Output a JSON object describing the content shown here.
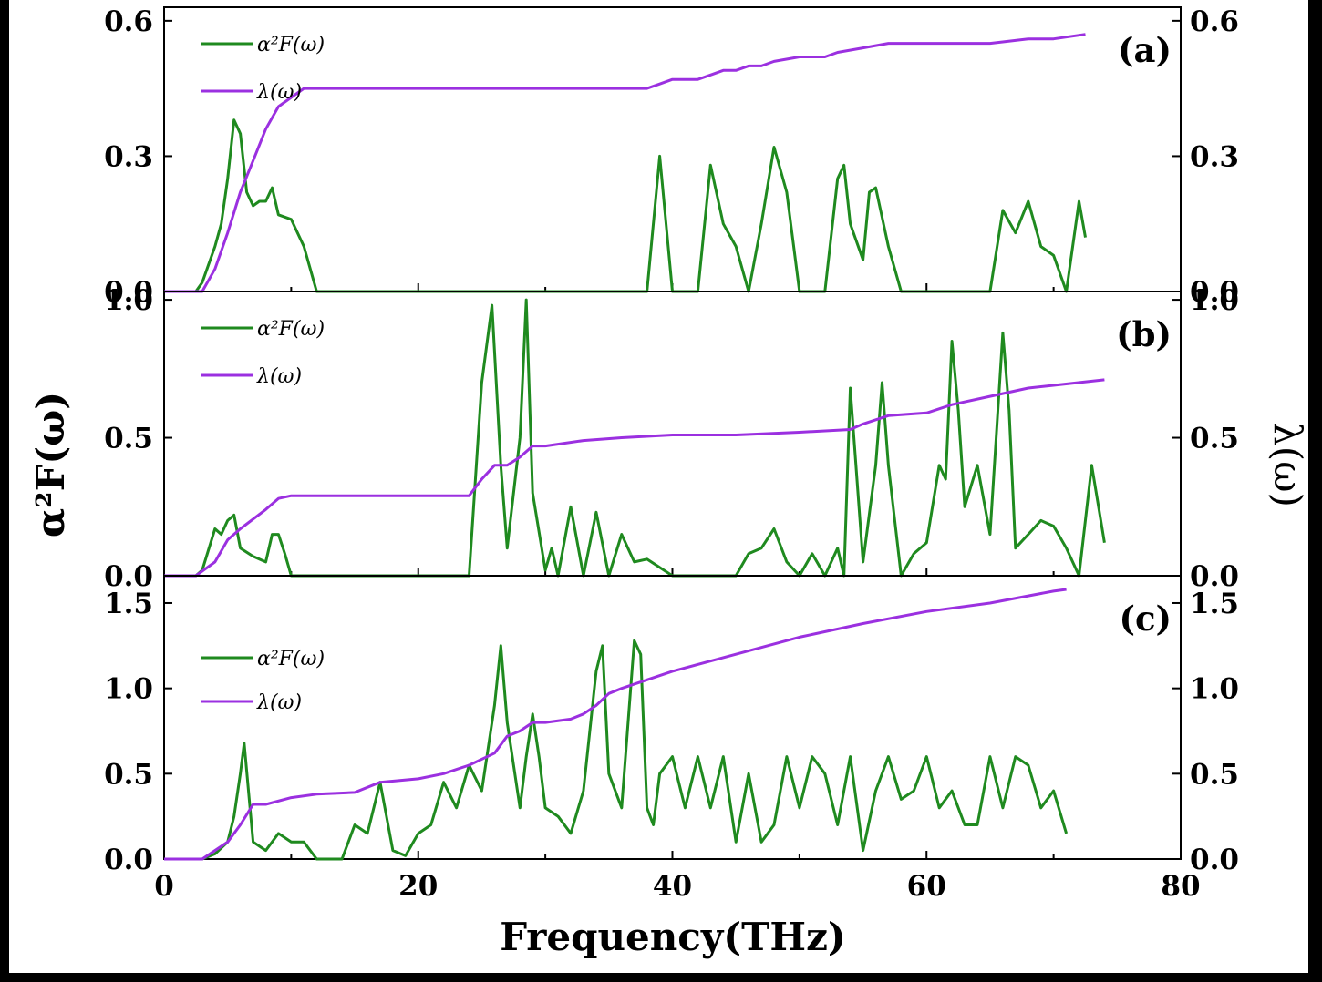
{
  "figure": {
    "xlabel": "Frequency(THz)",
    "ylabel_left": "α²F(ω)",
    "ylabel_right": "λ(ω)",
    "x_ticks": [
      "0",
      "20",
      "40",
      "60",
      "80"
    ]
  },
  "colors": {
    "a2f": "#1f8a1f",
    "lambda": "#9b30e0"
  },
  "chart_data": [
    {
      "type": "line",
      "panel": "(a)",
      "xlim": [
        0,
        80
      ],
      "ylim": [
        0,
        0.63
      ],
      "yticks": [
        "0.0",
        "0.3",
        "0.6"
      ],
      "legend": [
        "α²F(ω)",
        "λ(ω)"
      ],
      "series": [
        {
          "name": "α²F(ω)",
          "color": "#1f8a1f",
          "x": [
            0,
            2.5,
            3,
            4,
            4.5,
            5,
            5.5,
            6,
            6.5,
            7,
            7.5,
            8,
            8.5,
            9,
            10,
            11,
            11.5,
            12,
            38,
            39,
            40,
            42,
            43,
            44,
            45,
            46,
            47,
            48,
            49,
            50,
            52,
            53,
            53.5,
            54,
            55,
            55.5,
            56,
            57,
            58,
            65,
            66,
            67,
            68,
            69,
            70,
            71,
            72,
            72.5
          ],
          "y": [
            0,
            0,
            0.02,
            0.1,
            0.15,
            0.25,
            0.38,
            0.35,
            0.22,
            0.19,
            0.2,
            0.2,
            0.23,
            0.17,
            0.16,
            0.1,
            0.05,
            0,
            0,
            0.3,
            0,
            0,
            0.28,
            0.15,
            0.1,
            0,
            0.15,
            0.32,
            0.22,
            0,
            0,
            0.25,
            0.28,
            0.15,
            0.07,
            0.22,
            0.23,
            0.1,
            0,
            0,
            0.18,
            0.13,
            0.2,
            0.1,
            0.08,
            0,
            0.2,
            0.12
          ]
        },
        {
          "name": "λ(ω)",
          "color": "#9b30e0",
          "x": [
            0,
            3,
            4,
            5,
            6,
            7,
            8,
            9,
            10,
            11,
            12,
            20,
            30,
            38,
            39,
            40,
            42,
            43,
            44,
            45,
            46,
            47,
            48,
            50,
            52,
            53,
            55,
            57,
            60,
            65,
            68,
            70,
            72.5
          ],
          "y": [
            0,
            0,
            0.05,
            0.13,
            0.22,
            0.29,
            0.36,
            0.41,
            0.43,
            0.45,
            0.45,
            0.45,
            0.45,
            0.45,
            0.46,
            0.47,
            0.47,
            0.48,
            0.49,
            0.49,
            0.5,
            0.5,
            0.51,
            0.52,
            0.52,
            0.53,
            0.54,
            0.55,
            0.55,
            0.55,
            0.56,
            0.56,
            0.57
          ]
        }
      ]
    },
    {
      "type": "line",
      "panel": "(b)",
      "xlim": [
        0,
        80
      ],
      "ylim": [
        0,
        1.03
      ],
      "yticks": [
        "0.0",
        "0.5",
        "1.0"
      ],
      "legend": [
        "α²F(ω)",
        "λ(ω)"
      ],
      "series": [
        {
          "name": "α²F(ω)",
          "color": "#1f8a1f",
          "x": [
            0,
            2.5,
            3,
            4,
            4.5,
            5,
            5.5,
            6,
            7,
            8,
            8.5,
            9,
            9.5,
            10,
            24,
            25,
            25.8,
            26.5,
            27,
            28,
            28.5,
            29,
            30,
            30.5,
            31,
            32,
            33,
            34,
            35,
            36,
            37,
            38,
            39,
            40,
            45,
            46,
            47,
            48,
            49,
            50,
            51,
            52,
            53,
            53.5,
            54,
            55,
            56,
            56.5,
            57,
            58,
            59,
            60,
            61,
            61.5,
            62,
            62.5,
            63,
            64,
            65,
            66,
            66.5,
            67,
            68,
            69,
            70,
            71,
            72,
            73,
            74
          ],
          "y": [
            0,
            0,
            0.02,
            0.17,
            0.15,
            0.2,
            0.22,
            0.1,
            0.07,
            0.05,
            0.15,
            0.15,
            0.08,
            0,
            0,
            0.7,
            0.98,
            0.4,
            0.1,
            0.5,
            1.0,
            0.3,
            0.02,
            0.1,
            0,
            0.25,
            0,
            0.23,
            0,
            0.15,
            0.05,
            0.06,
            0.03,
            0,
            0,
            0.08,
            0.1,
            0.17,
            0.05,
            0,
            0.08,
            0,
            0.1,
            0,
            0.68,
            0.05,
            0.4,
            0.7,
            0.4,
            0,
            0.08,
            0.12,
            0.4,
            0.35,
            0.85,
            0.6,
            0.25,
            0.4,
            0.15,
            0.88,
            0.6,
            0.1,
            0.15,
            0.2,
            0.18,
            0.1,
            0,
            0.4,
            0.12
          ]
        },
        {
          "name": "λ(ω)",
          "color": "#9b30e0",
          "x": [
            0,
            2.5,
            4,
            5,
            6,
            8,
            9,
            10,
            20,
            24,
            25,
            26,
            27,
            28,
            29,
            30,
            33,
            36,
            40,
            45,
            50,
            54,
            55,
            57,
            60,
            62,
            65,
            68,
            70,
            74
          ],
          "y": [
            0,
            0,
            0.05,
            0.13,
            0.17,
            0.24,
            0.28,
            0.29,
            0.29,
            0.29,
            0.35,
            0.4,
            0.4,
            0.43,
            0.47,
            0.47,
            0.49,
            0.5,
            0.51,
            0.51,
            0.52,
            0.53,
            0.55,
            0.58,
            0.59,
            0.62,
            0.65,
            0.68,
            0.69,
            0.71
          ]
        }
      ]
    },
    {
      "type": "line",
      "panel": "(c)",
      "xlim": [
        0,
        80
      ],
      "ylim": [
        0,
        1.66
      ],
      "yticks": [
        "0.0",
        "0.5",
        "1.0",
        "1.5"
      ],
      "legend": [
        "α²F(ω)",
        "λ(ω)"
      ],
      "series": [
        {
          "name": "α²F(ω)",
          "color": "#1f8a1f",
          "x": [
            0,
            3,
            4,
            5,
            5.5,
            6,
            6.3,
            7,
            8,
            9,
            10,
            11,
            12,
            14,
            15,
            16,
            17,
            18,
            19,
            20,
            21,
            22,
            23,
            24,
            25,
            26,
            26.5,
            27,
            28,
            28.5,
            29,
            29.5,
            30,
            31,
            32,
            33,
            34,
            34.5,
            35,
            36,
            37,
            37.5,
            38,
            38.5,
            39,
            40,
            41,
            42,
            43,
            44,
            45,
            46,
            47,
            48,
            49,
            50,
            51,
            52,
            53,
            54,
            55,
            56,
            57,
            58,
            59,
            60,
            61,
            62,
            63,
            64,
            65,
            66,
            67,
            68,
            69,
            70,
            71
          ],
          "y": [
            0,
            0,
            0.03,
            0.1,
            0.25,
            0.5,
            0.68,
            0.1,
            0.05,
            0.15,
            0.1,
            0.1,
            0,
            0,
            0.2,
            0.15,
            0.45,
            0.05,
            0.02,
            0.15,
            0.2,
            0.45,
            0.3,
            0.55,
            0.4,
            0.9,
            1.25,
            0.8,
            0.3,
            0.6,
            0.85,
            0.6,
            0.3,
            0.25,
            0.15,
            0.4,
            1.1,
            1.25,
            0.5,
            0.3,
            1.28,
            1.2,
            0.3,
            0.2,
            0.5,
            0.6,
            0.3,
            0.6,
            0.3,
            0.6,
            0.1,
            0.5,
            0.1,
            0.2,
            0.6,
            0.3,
            0.6,
            0.5,
            0.2,
            0.6,
            0.05,
            0.4,
            0.6,
            0.35,
            0.4,
            0.6,
            0.3,
            0.4,
            0.2,
            0.2,
            0.6,
            0.3,
            0.6,
            0.55,
            0.3,
            0.4,
            0.15
          ]
        },
        {
          "name": "λ(ω)",
          "color": "#9b30e0",
          "x": [
            0,
            3,
            5,
            6,
            7,
            8,
            10,
            12,
            15,
            17,
            20,
            22,
            24,
            26,
            27,
            28,
            29,
            30,
            32,
            33,
            34,
            35,
            36,
            38,
            40,
            45,
            50,
            55,
            60,
            65,
            70,
            71
          ],
          "y": [
            0,
            0,
            0.1,
            0.2,
            0.32,
            0.32,
            0.36,
            0.38,
            0.39,
            0.45,
            0.47,
            0.5,
            0.55,
            0.62,
            0.72,
            0.75,
            0.8,
            0.8,
            0.82,
            0.85,
            0.9,
            0.97,
            1.0,
            1.05,
            1.1,
            1.2,
            1.3,
            1.38,
            1.45,
            1.5,
            1.57,
            1.58
          ]
        }
      ]
    }
  ]
}
